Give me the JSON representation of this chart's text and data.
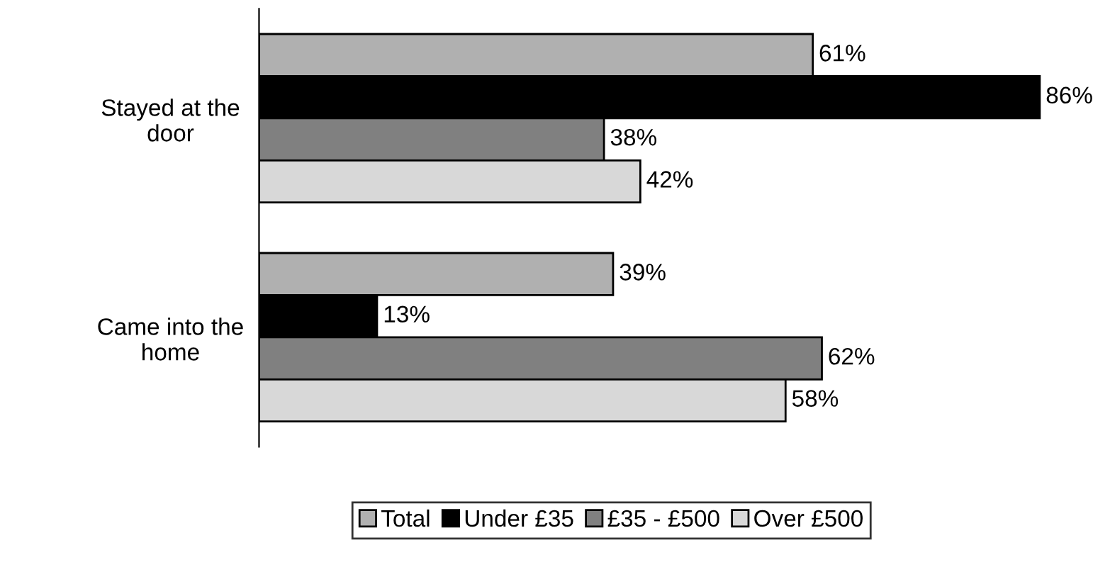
{
  "chart_data": {
    "type": "bar",
    "orientation": "horizontal",
    "categories": [
      "Stayed at the\ndoor",
      "Came into the\nhome"
    ],
    "series": [
      {
        "name": "Total",
        "color": "#b0b0b0",
        "values": [
          61,
          39
        ],
        "value_labels": [
          "61%",
          "39%"
        ]
      },
      {
        "name": "Under £35",
        "color": "#000000",
        "values": [
          86,
          13
        ],
        "value_labels": [
          "86%",
          "13%"
        ]
      },
      {
        "name": "£35 - £500",
        "color": "#808080",
        "values": [
          38,
          62
        ],
        "value_labels": [
          "38%",
          "62%"
        ]
      },
      {
        "name": "Over £500",
        "color": "#d8d8d8",
        "values": [
          42,
          58
        ],
        "value_labels": [
          "42%",
          "58%"
        ]
      }
    ],
    "legend": "bottom",
    "grid": false
  }
}
